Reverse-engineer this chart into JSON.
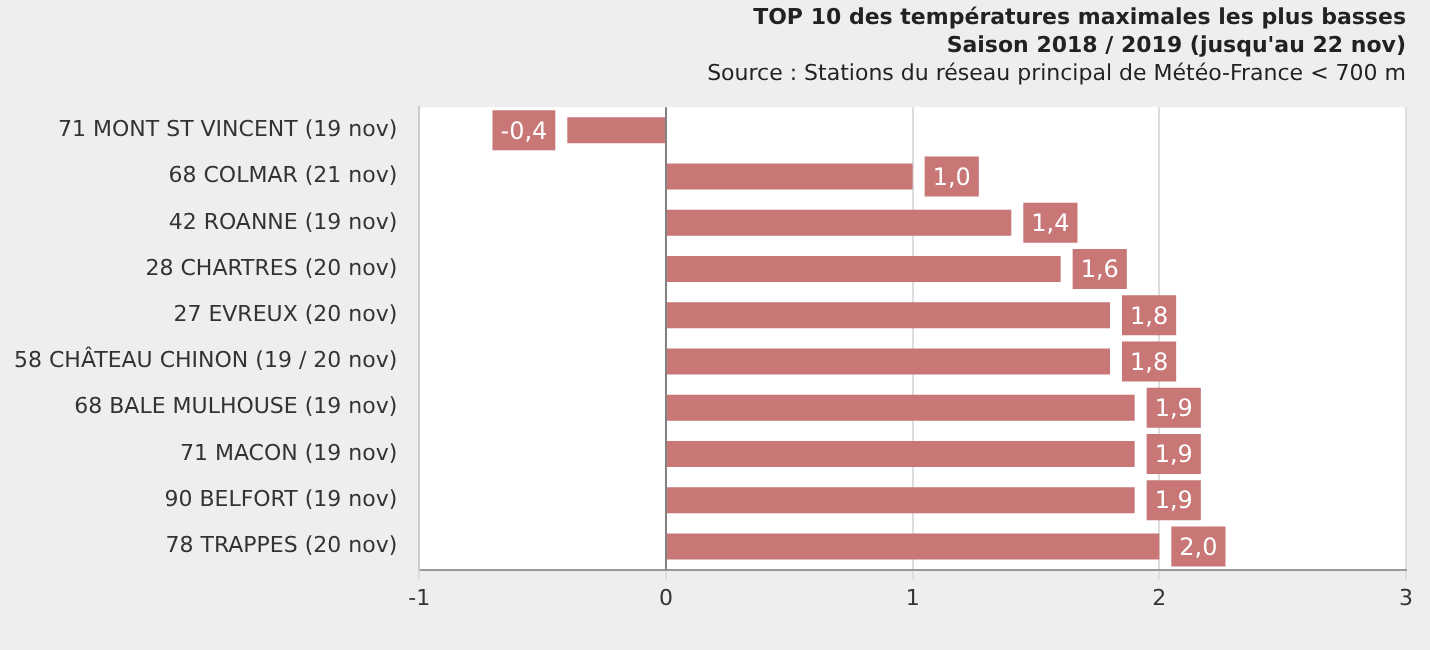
{
  "chart_data": {
    "type": "bar",
    "orientation": "horizontal",
    "title": "TOP 10 des températures maximales les plus basses",
    "subtitle": "Saison 2018 / 2019 (jusqu'au 22 nov)",
    "annotations": [
      "Source : Stations du réseau principal de Météo-France < 700 m"
    ],
    "categories": [
      "71 MONT ST VINCENT (19 nov)",
      "68 COLMAR (21 nov)",
      "42 ROANNE (19 nov)",
      "28 CHARTRES (20 nov)",
      "27 EVREUX (20 nov)",
      "58 CHÂTEAU CHINON (19 / 20 nov)",
      "68 BALE MULHOUSE (19 nov)",
      "71 MACON (19 nov)",
      "90 BELFORT (19 nov)",
      "78 TRAPPES (20 nov)"
    ],
    "values": [
      -0.4,
      1.0,
      1.4,
      1.6,
      1.8,
      1.8,
      1.9,
      1.9,
      1.9,
      2.0
    ],
    "value_labels": [
      "-0,4",
      "1,0",
      "1,4",
      "1,6",
      "1,8",
      "1,8",
      "1,9",
      "1,9",
      "1,9",
      "2,0"
    ],
    "color": "#c87676",
    "xlim": [
      -1,
      3
    ],
    "xticks": [
      -1,
      0,
      1,
      2,
      3
    ],
    "grid": "x",
    "ref_lines": [
      {
        "axis": "x",
        "value": 0,
        "color": "#808080"
      }
    ]
  }
}
